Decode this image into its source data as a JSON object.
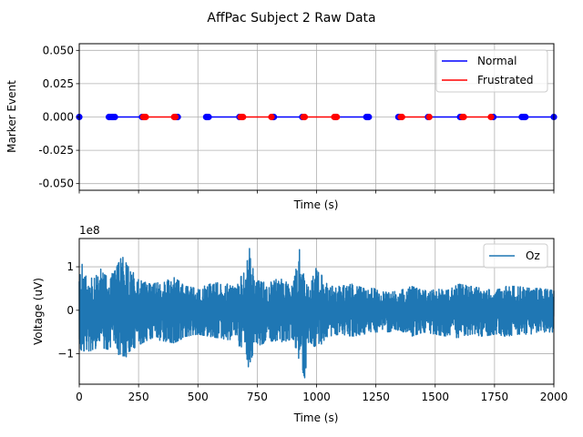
{
  "chart_data": {
    "title": "AffPac Subject 2 Raw Data",
    "charts": [
      {
        "type": "line",
        "xlabel": "Time (s)",
        "ylabel": "Marker Event",
        "xlim": [
          0,
          2000
        ],
        "ylim": [
          -0.055,
          0.055
        ],
        "yticks": [
          "0.050",
          "0.025",
          "0.000",
          "-0.025",
          "-0.050"
        ],
        "ytick_values": [
          0.05,
          0.025,
          0.0,
          -0.025,
          -0.05
        ],
        "xtick_values": [
          0,
          250,
          500,
          750,
          1000,
          1250,
          1500,
          1750,
          2000
        ],
        "show_xtick_labels": false,
        "grid": true,
        "legend_position": "upper right",
        "series": [
          {
            "name": "Normal",
            "color": "#0000ff",
            "segments": [
              [
                0,
                0
              ],
              [
                140,
                265
              ],
              [
                405,
                410
              ],
              [
                535,
                675
              ],
              [
                815,
                940
              ],
              [
                1080,
                1220
              ],
              [
                1350,
                1365
              ],
              [
                1470,
                1610
              ],
              [
                1740,
                1880
              ],
              [
                1880,
                2000
              ]
            ],
            "markers": [
              0,
              125,
              130,
              135,
              140,
              145,
              150,
              265,
              410,
              415,
              535,
              540,
              545,
              675,
              815,
              820,
              940,
              1080,
              1210,
              1215,
              1220,
              1345,
              1350,
              1470,
              1605,
              1610,
              1745,
              1865,
              1870,
              1875,
              1880,
              2000
            ]
          },
          {
            "name": "Frustrated",
            "color": "#ff0000",
            "segments": [
              [
                265,
                405
              ],
              [
                675,
                815
              ],
              [
                940,
                1080
              ],
              [
                1350,
                1470
              ],
              [
                1610,
                1740
              ]
            ],
            "markers": [
              270,
              275,
              280,
              400,
              405,
              680,
              685,
              690,
              810,
              945,
              950,
              1075,
              1085,
              1355,
              1360,
              1475,
              1615,
              1620,
              1735
            ]
          }
        ]
      },
      {
        "type": "line",
        "xlabel": "Time (s)",
        "ylabel": "Voltage (uV)",
        "offset_label": "1e8",
        "xlim": [
          0,
          2000
        ],
        "ylim": [
          -1.7,
          1.65
        ],
        "yticks": [
          "1",
          "0",
          "−1"
        ],
        "ytick_values": [
          1,
          0,
          -1
        ],
        "xticks": [
          "0",
          "250",
          "500",
          "750",
          "1000",
          "1250",
          "1500",
          "1750",
          "2000"
        ],
        "xtick_values": [
          0,
          250,
          500,
          750,
          1000,
          1250,
          1500,
          1750,
          2000
        ],
        "grid": true,
        "legend_position": "upper right",
        "series": [
          {
            "name": "Oz",
            "color": "#1f77b4",
            "envelope": {
              "x": [
                0,
                15,
                30,
                60,
                90,
                120,
                150,
                180,
                210,
                250,
                300,
                350,
                400,
                450,
                500,
                550,
                600,
                650,
                700,
                720,
                740,
                760,
                800,
                850,
                900,
                930,
                950,
                970,
                1000,
                1050,
                1100,
                1150,
                1200,
                1250,
                1300,
                1350,
                1400,
                1450,
                1500,
                1550,
                1600,
                1650,
                1700,
                1750,
                1800,
                1850,
                1900,
                1950,
                2000
              ],
              "upper": [
                1.05,
                1.1,
                0.85,
                0.7,
                0.95,
                0.75,
                0.9,
                1.25,
                1.0,
                0.7,
                0.6,
                0.65,
                0.75,
                0.55,
                0.5,
                0.6,
                0.65,
                0.55,
                0.9,
                1.5,
                0.6,
                0.7,
                0.65,
                0.75,
                0.6,
                1.45,
                0.65,
                0.55,
                1.0,
                0.55,
                0.55,
                0.6,
                0.5,
                0.5,
                0.4,
                0.45,
                0.55,
                0.45,
                0.5,
                0.45,
                0.6,
                0.55,
                0.5,
                0.45,
                0.55,
                0.55,
                0.5,
                0.5,
                0.45
              ],
              "lower": [
                -1.1,
                -0.95,
                -0.9,
                -1.0,
                -0.85,
                -0.9,
                -0.75,
                -1.25,
                -0.95,
                -0.8,
                -0.65,
                -0.7,
                -0.75,
                -0.6,
                -0.55,
                -0.6,
                -0.65,
                -0.7,
                -0.95,
                -1.5,
                -0.7,
                -0.8,
                -0.7,
                -0.75,
                -0.65,
                -1.2,
                -1.55,
                -0.7,
                -0.9,
                -0.6,
                -0.55,
                -0.6,
                -0.55,
                -0.5,
                -0.5,
                -0.45,
                -0.6,
                -0.5,
                -0.55,
                -0.6,
                -0.65,
                -0.55,
                -0.6,
                -0.55,
                -0.6,
                -0.55,
                -0.55,
                -0.5,
                -0.5
              ]
            }
          }
        ]
      }
    ]
  }
}
